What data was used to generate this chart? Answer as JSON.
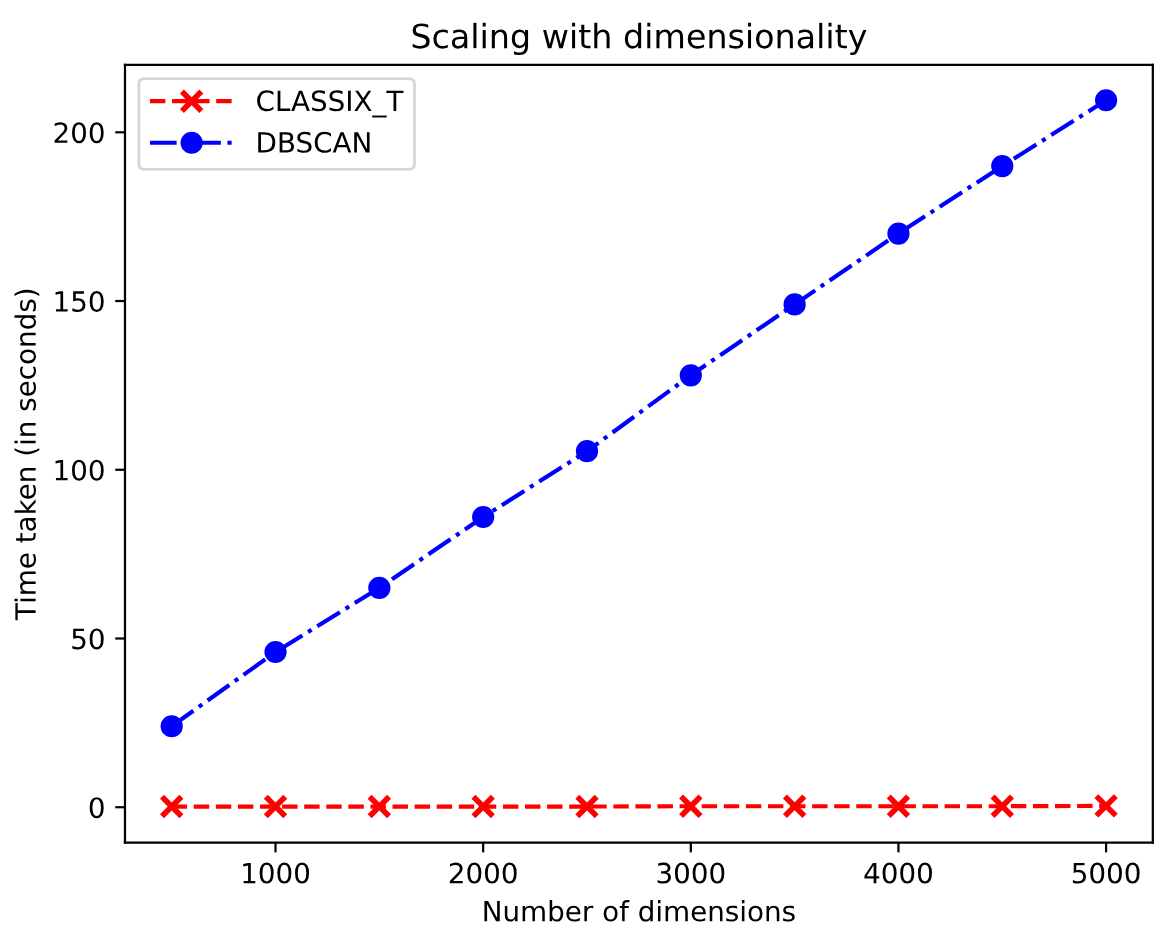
{
  "chart_data": {
    "type": "line",
    "title": "Scaling with dimensionality",
    "xlabel": "Number of dimensions",
    "ylabel": "Time taken (in seconds)",
    "x": [
      500,
      1000,
      1500,
      2000,
      2500,
      3000,
      3500,
      4000,
      4500,
      5000
    ],
    "series": [
      {
        "name": "CLASSIX_T",
        "color": "#ff0000",
        "marker": "cross",
        "line_style": "dashed",
        "values": [
          0.2,
          0.2,
          0.2,
          0.2,
          0.2,
          0.3,
          0.3,
          0.3,
          0.3,
          0.4
        ]
      },
      {
        "name": "DBSCAN",
        "color": "#0000ff",
        "marker": "circle",
        "line_style": "dashdot",
        "values": [
          24,
          46,
          65,
          86,
          105.5,
          128,
          149,
          170,
          190,
          209.5
        ]
      }
    ],
    "xlim": [
      275,
      5225
    ],
    "ylim": [
      -10.5,
      220
    ],
    "xticks": [
      1000,
      2000,
      3000,
      4000,
      5000
    ],
    "yticks": [
      0,
      50,
      100,
      150,
      200
    ],
    "grid": false,
    "legend": "top left"
  }
}
